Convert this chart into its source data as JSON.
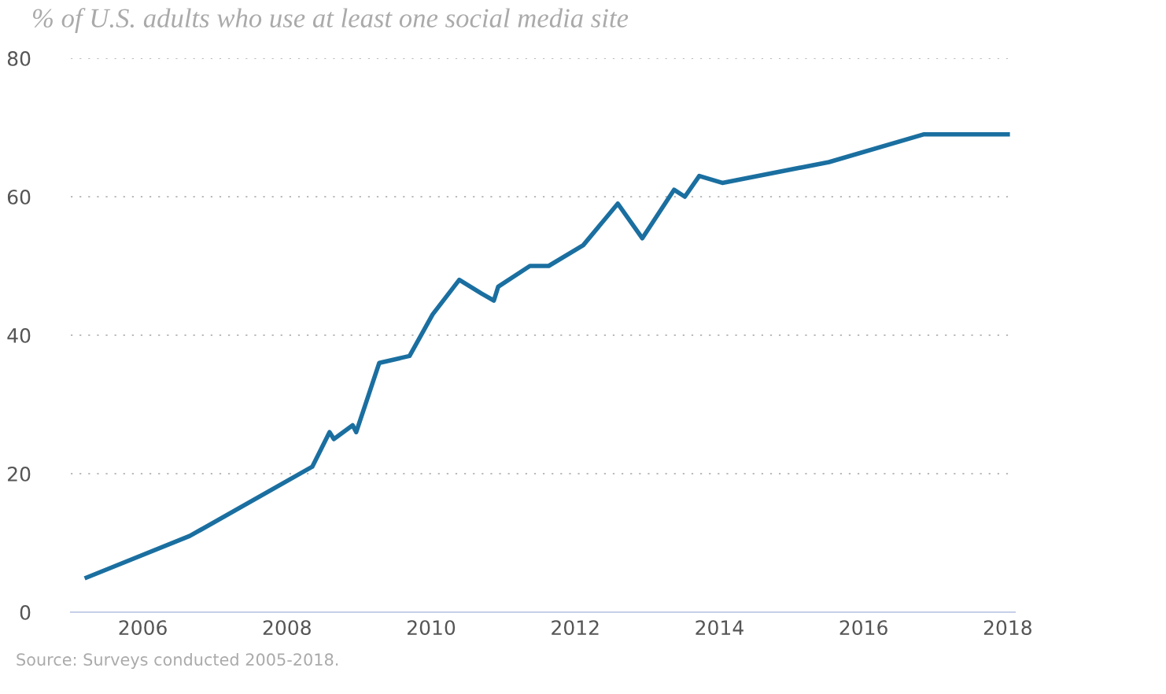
{
  "chart_data": {
    "type": "line",
    "title": "% of U.S. adults who use at least one social media site",
    "x": [
      2005.22,
      2006.65,
      2008.35,
      2008.59,
      2008.65,
      2008.91,
      2008.96,
      2009.28,
      2009.7,
      2010.02,
      2010.39,
      2010.7,
      2010.87,
      2010.93,
      2011.37,
      2011.63,
      2012.11,
      2012.59,
      2012.93,
      2013.37,
      2013.52,
      2013.72,
      2014.04,
      2015.52,
      2016.83,
      2018.0
    ],
    "series": [
      {
        "color": "#1a6fa0",
        "values": [
          5,
          11,
          21,
          26,
          25,
          27,
          26,
          36,
          37,
          43,
          48,
          46,
          45,
          47,
          50,
          50,
          53,
          59,
          54,
          61,
          60,
          63,
          62,
          65,
          69,
          69
        ]
      }
    ],
    "xlim": [
      2005,
      2018.1
    ],
    "xticks": [
      2006,
      2008,
      2010,
      2012,
      2014,
      2016,
      2018
    ],
    "ylim": [
      0,
      80
    ],
    "yticks": [
      0,
      20,
      40,
      60,
      80
    ],
    "grid": "y",
    "legend": false,
    "marker": "none",
    "line_style": "solid",
    "annotations": [
      "Source: Surveys conducted 2005-2018."
    ]
  }
}
